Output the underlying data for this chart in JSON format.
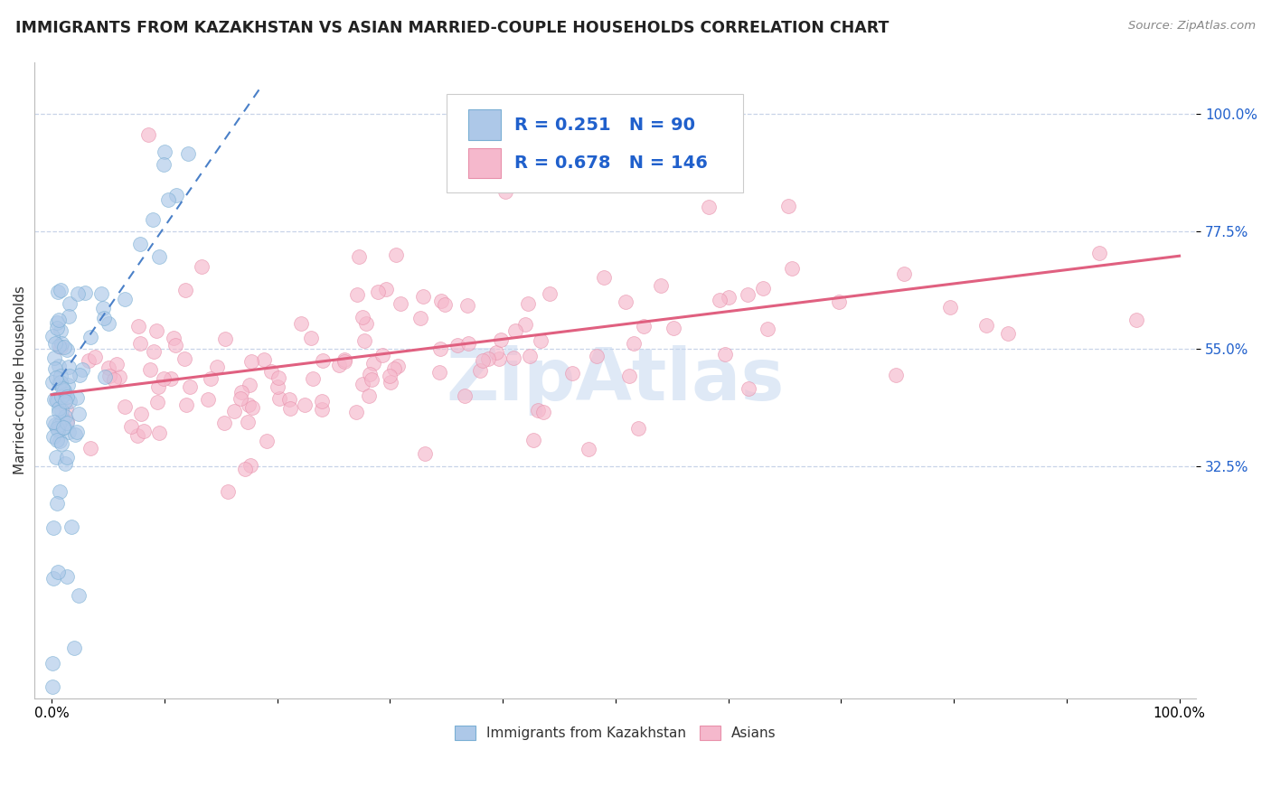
{
  "title": "IMMIGRANTS FROM KAZAKHSTAN VS ASIAN MARRIED-COUPLE HOUSEHOLDS CORRELATION CHART",
  "source": "Source: ZipAtlas.com",
  "ylabel": "Married-couple Households",
  "x_min": 0.0,
  "x_max": 1.0,
  "y_min": -0.12,
  "y_max": 1.1,
  "y_ticks": [
    0.325,
    0.55,
    0.775,
    1.0
  ],
  "y_tick_labels": [
    "32.5%",
    "55.0%",
    "77.5%",
    "100.0%"
  ],
  "x_ticks": [
    0.0,
    0.1,
    0.2,
    0.3,
    0.4,
    0.5,
    0.6,
    0.7,
    0.8,
    0.9,
    1.0
  ],
  "x_tick_labels": [
    "0.0%",
    "",
    "",
    "",
    "",
    "",
    "",
    "",
    "",
    "",
    "100.0%"
  ],
  "series": [
    {
      "name": "Immigrants from Kazakhstan",
      "R": 0.251,
      "N": 90,
      "fill_color": "#adc8e8",
      "edge_color": "#7aafd4",
      "line_color": "#4a80c8",
      "line_style": "--"
    },
    {
      "name": "Asians",
      "R": 0.678,
      "N": 146,
      "fill_color": "#f5b8cc",
      "edge_color": "#e890aa",
      "line_color": "#e06080",
      "line_style": "-"
    }
  ],
  "blue_trend_x": [
    0.0,
    0.185
  ],
  "blue_trend_y": [
    0.47,
    1.05
  ],
  "pink_trend_x": [
    0.0,
    1.0
  ],
  "pink_trend_y": [
    0.462,
    0.728
  ],
  "watermark": "ZipAtlas",
  "watermark_color": "#c5d8f0",
  "legend_text_color": "#2060cc",
  "background_color": "#ffffff",
  "grid_color": "#c8d4e8",
  "title_fontsize": 12.5,
  "axis_label_fontsize": 11,
  "tick_fontsize": 11,
  "legend_fontsize": 14
}
